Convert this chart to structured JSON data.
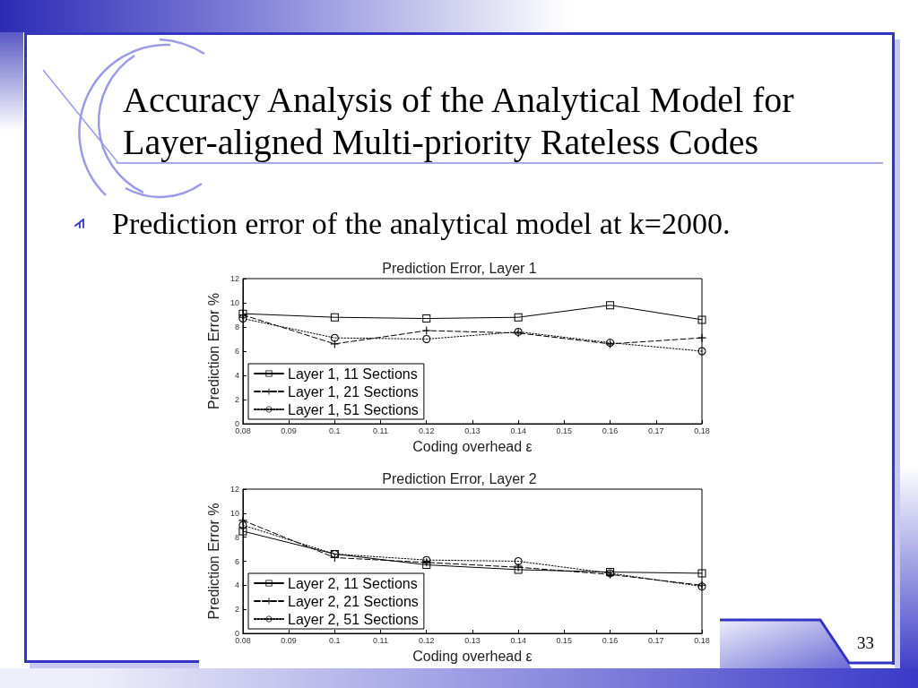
{
  "chart_data": [
    {
      "type": "line",
      "title": "Prediction Error, Layer 1",
      "xlabel": "Coding overhead ε",
      "ylabel": "Prediction Error %",
      "annotations": [
        "Accuracy Analysis of the Analytical Model for Layer-aligned Multi-priority Rateless Codes",
        "Prediction error of the analytical model at k=2000.",
        "33"
      ],
      "x": [
        0.08,
        0.1,
        0.12,
        0.14,
        0.16,
        0.18
      ],
      "series": [
        {
          "name": "Layer 1, 11 Sections",
          "color": "#000000",
          "marker": "square",
          "line_style": "solid",
          "values": [
            9.1,
            8.8,
            8.7,
            8.8,
            9.8,
            8.6
          ]
        },
        {
          "name": "Layer 1, 21 Sections",
          "color": "#000000",
          "marker": "cross",
          "line_style": "dashed",
          "values": [
            9.0,
            6.6,
            7.7,
            7.5,
            6.6,
            7.1
          ]
        },
        {
          "name": "Layer 1, 51 Sections",
          "color": "#000000",
          "marker": "circle",
          "line_style": "dotted",
          "values": [
            8.7,
            7.1,
            7.0,
            7.6,
            6.7,
            6.0
          ]
        }
      ],
      "xlim": [
        0.08,
        0.18
      ],
      "xticks": [
        0.08,
        0.09,
        0.1,
        0.11,
        0.12,
        0.13,
        0.14,
        0.15,
        0.16,
        0.17,
        0.18
      ],
      "ylim": [
        0,
        12
      ],
      "yticks": [
        0,
        2,
        4,
        6,
        8,
        10,
        12
      ],
      "grid": false,
      "legend": "bottom left"
    },
    {
      "type": "line",
      "title": "Prediction Error, Layer 2",
      "xlabel": "Coding overhead ε",
      "ylabel": "Prediction Error %",
      "x": [
        0.08,
        0.1,
        0.12,
        0.14,
        0.16,
        0.18
      ],
      "series": [
        {
          "name": "Layer 2, 11 Sections",
          "color": "#000000",
          "marker": "square",
          "line_style": "solid",
          "values": [
            8.5,
            6.6,
            5.7,
            5.3,
            5.1,
            5.0
          ]
        },
        {
          "name": "Layer 2, 21 Sections",
          "color": "#000000",
          "marker": "cross",
          "line_style": "dashed",
          "values": [
            9.4,
            6.3,
            5.9,
            5.5,
            4.9,
            4.0
          ]
        },
        {
          "name": "Layer 2, 51 Sections",
          "color": "#000000",
          "marker": "circle",
          "line_style": "dotted",
          "values": [
            9.0,
            6.6,
            6.1,
            6.0,
            5.0,
            3.9
          ]
        }
      ],
      "xlim": [
        0.08,
        0.18
      ],
      "xticks": [
        0.08,
        0.09,
        0.1,
        0.11,
        0.12,
        0.13,
        0.14,
        0.15,
        0.16,
        0.17,
        0.18
      ],
      "ylim": [
        0,
        12
      ],
      "yticks": [
        0,
        2,
        4,
        6,
        8,
        10,
        12
      ],
      "grid": false,
      "legend": "bottom left"
    }
  ]
}
